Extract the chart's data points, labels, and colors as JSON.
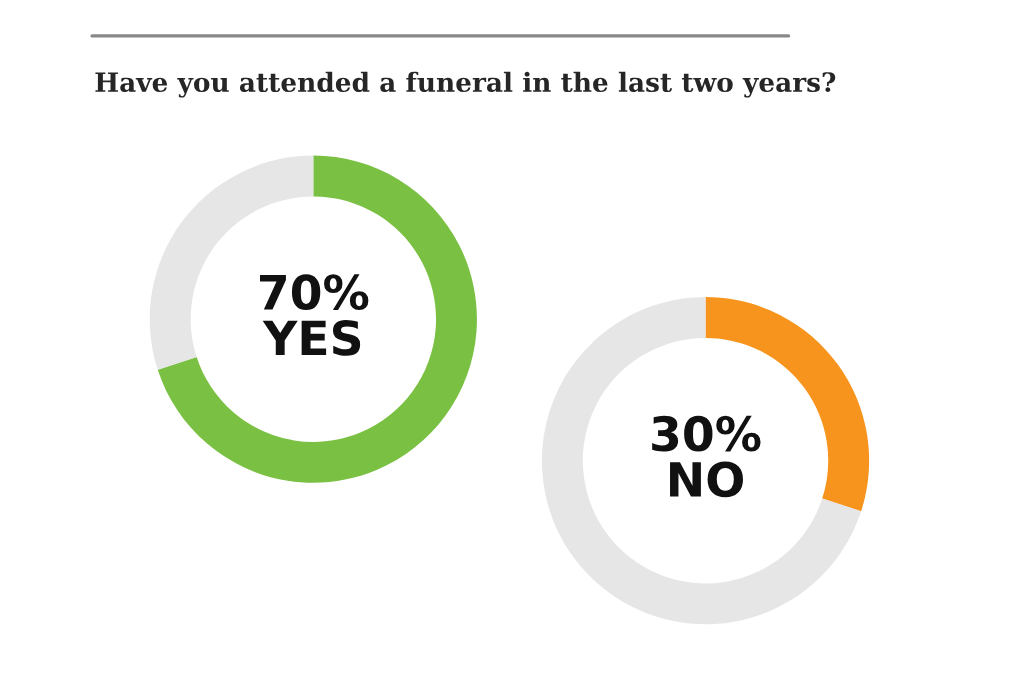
{
  "chart_data": [
    {
      "type": "donut",
      "title": "Have you attended a funeral in the last two years?",
      "categories": [
        "YES",
        null
      ],
      "values": [
        70,
        30
      ],
      "colors": [
        "#7ac143",
        "#e6e6e6"
      ],
      "value_labels": [
        "70%",
        null
      ]
    },
    {
      "type": "donut",
      "categories": [
        "NO",
        null
      ],
      "values": [
        30,
        70
      ],
      "colors": [
        "#f7941d",
        "#e6e6e6"
      ],
      "value_labels": [
        "30%",
        null
      ]
    }
  ]
}
